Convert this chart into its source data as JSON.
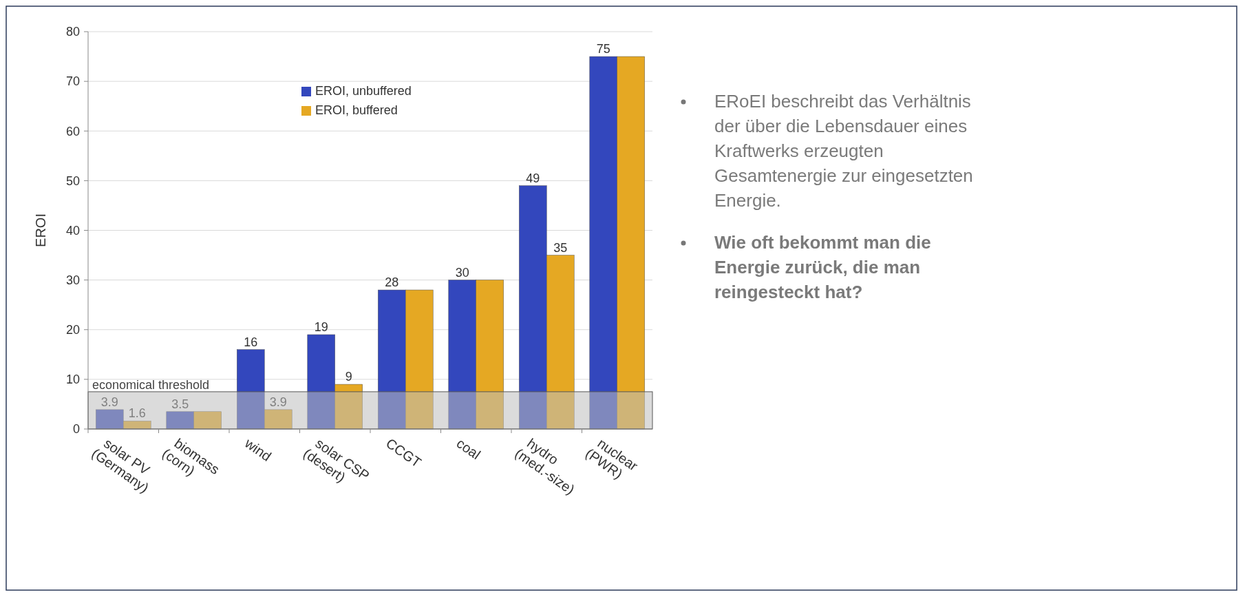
{
  "chart_data": {
    "type": "bar",
    "ylabel": "EROI",
    "categories": [
      "solar PV (Germany)",
      "biomass (corn)",
      "wind",
      "solar CSP (desert)",
      "CCGT",
      "coal",
      "hydro (med.-size)",
      "nuclear (PWR)"
    ],
    "series": [
      {
        "name": "EROI, unbuffered",
        "color": "#3347bd",
        "values": [
          3.9,
          3.5,
          16,
          19,
          28,
          30,
          49,
          75
        ],
        "value_labels": [
          "3.9",
          "3.5",
          "16",
          "19",
          "28",
          "30",
          "49",
          "75"
        ]
      },
      {
        "name": "EROI, buffered",
        "color": "#e5a823",
        "values": [
          1.6,
          3.5,
          3.9,
          9,
          28,
          30,
          35,
          75
        ],
        "value_labels": [
          "1.6",
          null,
          "3.9",
          "9",
          null,
          null,
          "35",
          null
        ]
      }
    ],
    "ylim": [
      0,
      80
    ],
    "yticks": [
      0,
      10,
      20,
      30,
      40,
      50,
      60,
      70,
      80
    ],
    "grid": "y",
    "legend": "top",
    "bands": [
      {
        "axis": "y",
        "from": 0,
        "to": 7.5,
        "label": "economical threshold",
        "color": "#bdbdbd"
      }
    ],
    "annotations": [
      "ERoEI beschreibt das Verhältnis der über die Lebensdauer eines Kraftwerks erzeugten Gesamtenergie zur eingesetzten Energie.",
      "Wie oft bekommt man die Energie zurück, die man reingesteckt hat?"
    ]
  }
}
